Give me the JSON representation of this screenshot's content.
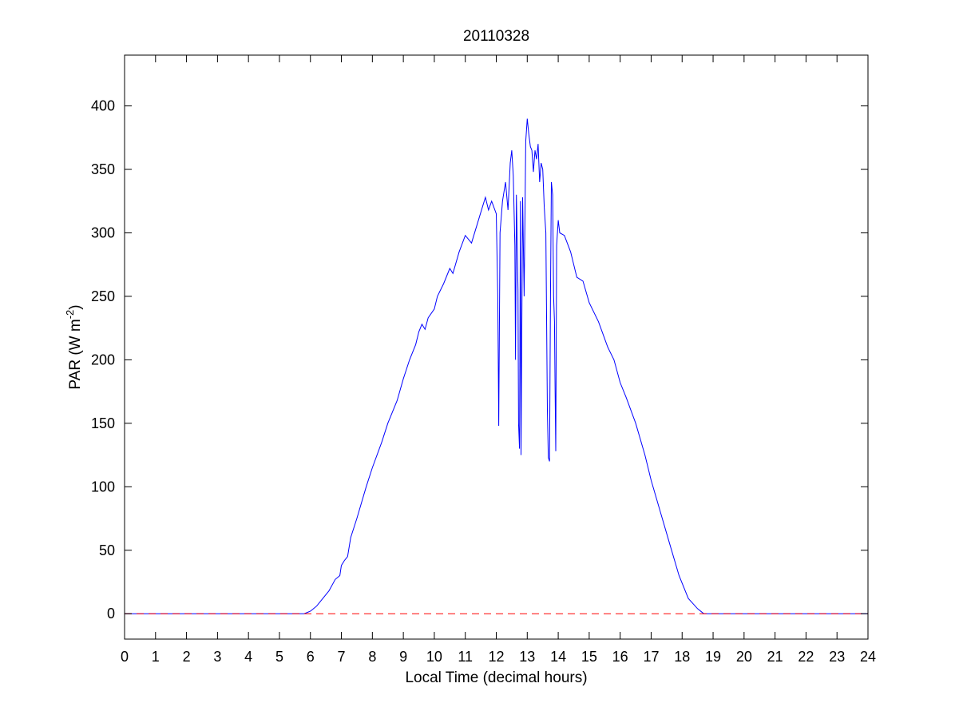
{
  "chart_data": {
    "type": "line",
    "title": "20110328",
    "xlabel": "Local Time (decimal hours)",
    "ylabel": "PAR (W m",
    "ylabel_sup": "-2",
    "ylabel_close": ")",
    "xlim": [
      0,
      24
    ],
    "ylim": [
      -20,
      440
    ],
    "xticks": [
      0,
      1,
      2,
      3,
      4,
      5,
      6,
      7,
      8,
      9,
      10,
      11,
      12,
      13,
      14,
      15,
      16,
      17,
      18,
      19,
      20,
      21,
      22,
      23,
      24
    ],
    "yticks": [
      0,
      50,
      100,
      150,
      200,
      250,
      300,
      350,
      400
    ],
    "grid": false,
    "legend": "none",
    "series": [
      {
        "color": "#0000ff",
        "style": "solid",
        "points": [
          [
            0,
            0
          ],
          [
            5.8,
            0
          ],
          [
            6.0,
            2
          ],
          [
            6.2,
            6
          ],
          [
            6.4,
            12
          ],
          [
            6.6,
            18
          ],
          [
            6.8,
            27
          ],
          [
            6.95,
            30
          ],
          [
            7.0,
            38
          ],
          [
            7.1,
            42
          ],
          [
            7.2,
            45
          ],
          [
            7.3,
            60
          ],
          [
            7.5,
            75
          ],
          [
            7.8,
            100
          ],
          [
            8.0,
            115
          ],
          [
            8.3,
            135
          ],
          [
            8.5,
            150
          ],
          [
            8.8,
            168
          ],
          [
            9.0,
            185
          ],
          [
            9.2,
            200
          ],
          [
            9.4,
            212
          ],
          [
            9.5,
            222
          ],
          [
            9.6,
            228
          ],
          [
            9.7,
            224
          ],
          [
            9.8,
            233
          ],
          [
            10.0,
            240
          ],
          [
            10.1,
            250
          ],
          [
            10.3,
            260
          ],
          [
            10.5,
            272
          ],
          [
            10.6,
            268
          ],
          [
            10.8,
            285
          ],
          [
            11.0,
            298
          ],
          [
            11.2,
            292
          ],
          [
            11.4,
            308
          ],
          [
            11.55,
            320
          ],
          [
            11.65,
            328
          ],
          [
            11.75,
            318
          ],
          [
            11.85,
            325
          ],
          [
            12.0,
            315
          ],
          [
            12.05,
            250
          ],
          [
            12.08,
            148
          ],
          [
            12.12,
            300
          ],
          [
            12.2,
            325
          ],
          [
            12.3,
            340
          ],
          [
            12.38,
            318
          ],
          [
            12.45,
            355
          ],
          [
            12.5,
            365
          ],
          [
            12.55,
            345
          ],
          [
            12.6,
            290
          ],
          [
            12.62,
            200
          ],
          [
            12.65,
            330
          ],
          [
            12.7,
            255
          ],
          [
            12.72,
            150
          ],
          [
            12.75,
            130
          ],
          [
            12.78,
            325
          ],
          [
            12.8,
            125
          ],
          [
            12.85,
            328
          ],
          [
            12.9,
            250
          ],
          [
            12.95,
            372
          ],
          [
            13.0,
            390
          ],
          [
            13.05,
            378
          ],
          [
            13.1,
            368
          ],
          [
            13.15,
            365
          ],
          [
            13.2,
            348
          ],
          [
            13.25,
            365
          ],
          [
            13.3,
            358
          ],
          [
            13.35,
            370
          ],
          [
            13.4,
            340
          ],
          [
            13.45,
            355
          ],
          [
            13.5,
            350
          ],
          [
            13.55,
            320
          ],
          [
            13.6,
            300
          ],
          [
            13.65,
            160
          ],
          [
            13.68,
            123
          ],
          [
            13.72,
            120
          ],
          [
            13.75,
            250
          ],
          [
            13.78,
            340
          ],
          [
            13.82,
            330
          ],
          [
            13.85,
            250
          ],
          [
            13.88,
            230
          ],
          [
            13.9,
            175
          ],
          [
            13.92,
            128
          ],
          [
            13.95,
            290
          ],
          [
            14.0,
            310
          ],
          [
            14.05,
            300
          ],
          [
            14.2,
            298
          ],
          [
            14.4,
            285
          ],
          [
            14.6,
            265
          ],
          [
            14.8,
            262
          ],
          [
            15.0,
            245
          ],
          [
            15.3,
            230
          ],
          [
            15.6,
            210
          ],
          [
            15.8,
            200
          ],
          [
            16.0,
            182
          ],
          [
            16.2,
            170
          ],
          [
            16.5,
            150
          ],
          [
            16.8,
            125
          ],
          [
            17.0,
            105
          ],
          [
            17.3,
            80
          ],
          [
            17.6,
            55
          ],
          [
            17.9,
            30
          ],
          [
            18.2,
            12
          ],
          [
            18.5,
            4
          ],
          [
            18.7,
            0
          ],
          [
            24,
            0
          ]
        ]
      },
      {
        "color": "#ff0000",
        "style": "dashed",
        "points": [
          [
            0,
            0
          ],
          [
            24,
            0
          ]
        ]
      }
    ]
  }
}
